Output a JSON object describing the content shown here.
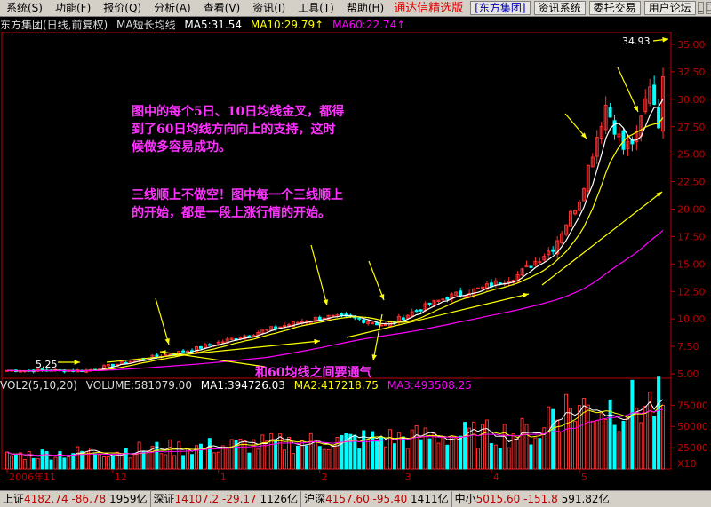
{
  "menu": [
    "系统(S)",
    "功能(F)",
    "报价(Q)",
    "分析(A)",
    "查看(V)",
    "资讯(I)",
    "工具(T)",
    "帮助(H)"
  ],
  "promo": "通达信精选版",
  "top_buttons": [
    "[东方集团]",
    "资讯系统",
    "委托交易",
    "用户论坛"
  ],
  "window_controls": [
    "_",
    "□",
    "×"
  ],
  "info": {
    "title": "东方集团(日线,前复权)",
    "indicator": "MA短长均线",
    "ma5": "MA5:31.54",
    "ma10": "MA10:29.79↑",
    "ma60": "MA60:22.74↑"
  },
  "colors": {
    "ma5": "#ffffff",
    "ma10": "#ffff00",
    "ma60": "#ff00ff",
    "up": "#ff3030",
    "down": "#00ffff",
    "axis": "#c00000",
    "annot": "#ff33ff",
    "arrow": "#ffff00"
  },
  "price_axis": [
    "35.00",
    "32.50",
    "30.00",
    "27.50",
    "25.00",
    "22.50",
    "20.00",
    "17.50",
    "15.00",
    "12.50",
    "10.00",
    "7.50",
    "5.00"
  ],
  "price_high_label": "34.93",
  "price_low_label": "5.25",
  "annotations": {
    "text1_line1": "图中的每个5日、10日均线金叉，都得",
    "text1_line2": "到了60日均线方向向上的支持，这时",
    "text1_line3": "候做多容易成功。",
    "text2_line1": "三线顺上不做空！图中每一个三线顺上",
    "text2_line2": "的开始，都是一段上涨行情的开始。",
    "text3": "和60均线之间要通气"
  },
  "volume_info": {
    "title": "VOL2(5,10,20)",
    "volume": "VOLUME:581079.00",
    "ma1": "MA1:394726.03",
    "ma2": "MA2:417218.75",
    "ma3": "MA3:493508.25"
  },
  "vol_axis": [
    "75000",
    "50000",
    "25000"
  ],
  "vol_unit": "X10",
  "date_axis": [
    "2006年11",
    "12",
    "1",
    "2",
    "3",
    "4",
    "5"
  ],
  "index_bar": [
    {
      "name": "上证",
      "value": "4182.74",
      "change": "-86.78",
      "amount": "1959亿"
    },
    {
      "name": "深证",
      "value": "14107.2",
      "change": "-29.17",
      "amount": "1126亿"
    },
    {
      "name": "沪深",
      "value": "4157.60",
      "change": "-95.40",
      "amount": "1411亿"
    },
    {
      "name": "中小",
      "value": "5015.60",
      "change": "-151.8",
      "amount": "591.82亿"
    }
  ]
}
